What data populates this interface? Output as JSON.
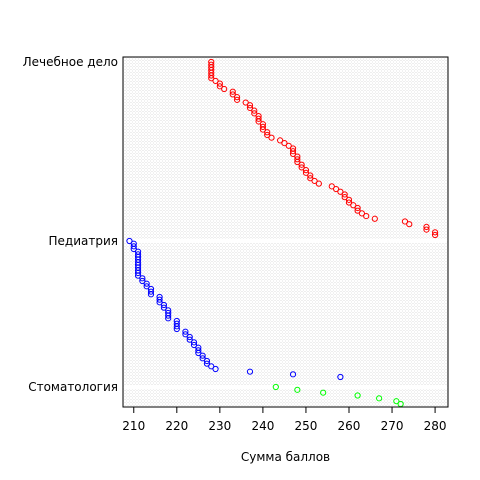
{
  "chart_data": {
    "type": "scatter",
    "xlabel": "Сумма баллов",
    "xlim": [
      207.5,
      283
    ],
    "xticks": [
      210,
      220,
      230,
      240,
      250,
      260,
      270,
      280
    ],
    "group_labels": [
      "Лечебное дело",
      "Педиатрия",
      "Стоматология"
    ],
    "grid": true,
    "series": [
      {
        "group": "Лечебное дело",
        "color": "#FF0000",
        "values": [
          228,
          228,
          228,
          228,
          228,
          228,
          228,
          229,
          230,
          230,
          231,
          233,
          233,
          234,
          234,
          236,
          237,
          237,
          238,
          238,
          239,
          239,
          239,
          240,
          240,
          240,
          241,
          241,
          242,
          244,
          245,
          246,
          247,
          247,
          247,
          248,
          248,
          248,
          249,
          249,
          250,
          250,
          251,
          251,
          252,
          253,
          256,
          257,
          258,
          259,
          259,
          260,
          260,
          261,
          262,
          262,
          263,
          264,
          266,
          273,
          274,
          278,
          278,
          280,
          280
        ]
      },
      {
        "group": "Педиатрия",
        "color": "#0000FF",
        "values": [
          209,
          210,
          210,
          210,
          211,
          211,
          211,
          211,
          211,
          211,
          211,
          211,
          211,
          211,
          212,
          212,
          213,
          213,
          214,
          214,
          214,
          216,
          216,
          216,
          217,
          217,
          218,
          218,
          218,
          218,
          220,
          220,
          220,
          220,
          222,
          222,
          223,
          223,
          224,
          224,
          225,
          225,
          225,
          226,
          226,
          227,
          227,
          228,
          229,
          237,
          247,
          258
        ]
      },
      {
        "group": "Стоматология",
        "color": "#00FF00",
        "values": [
          243,
          248,
          254,
          262,
          267,
          271,
          272
        ]
      }
    ]
  }
}
